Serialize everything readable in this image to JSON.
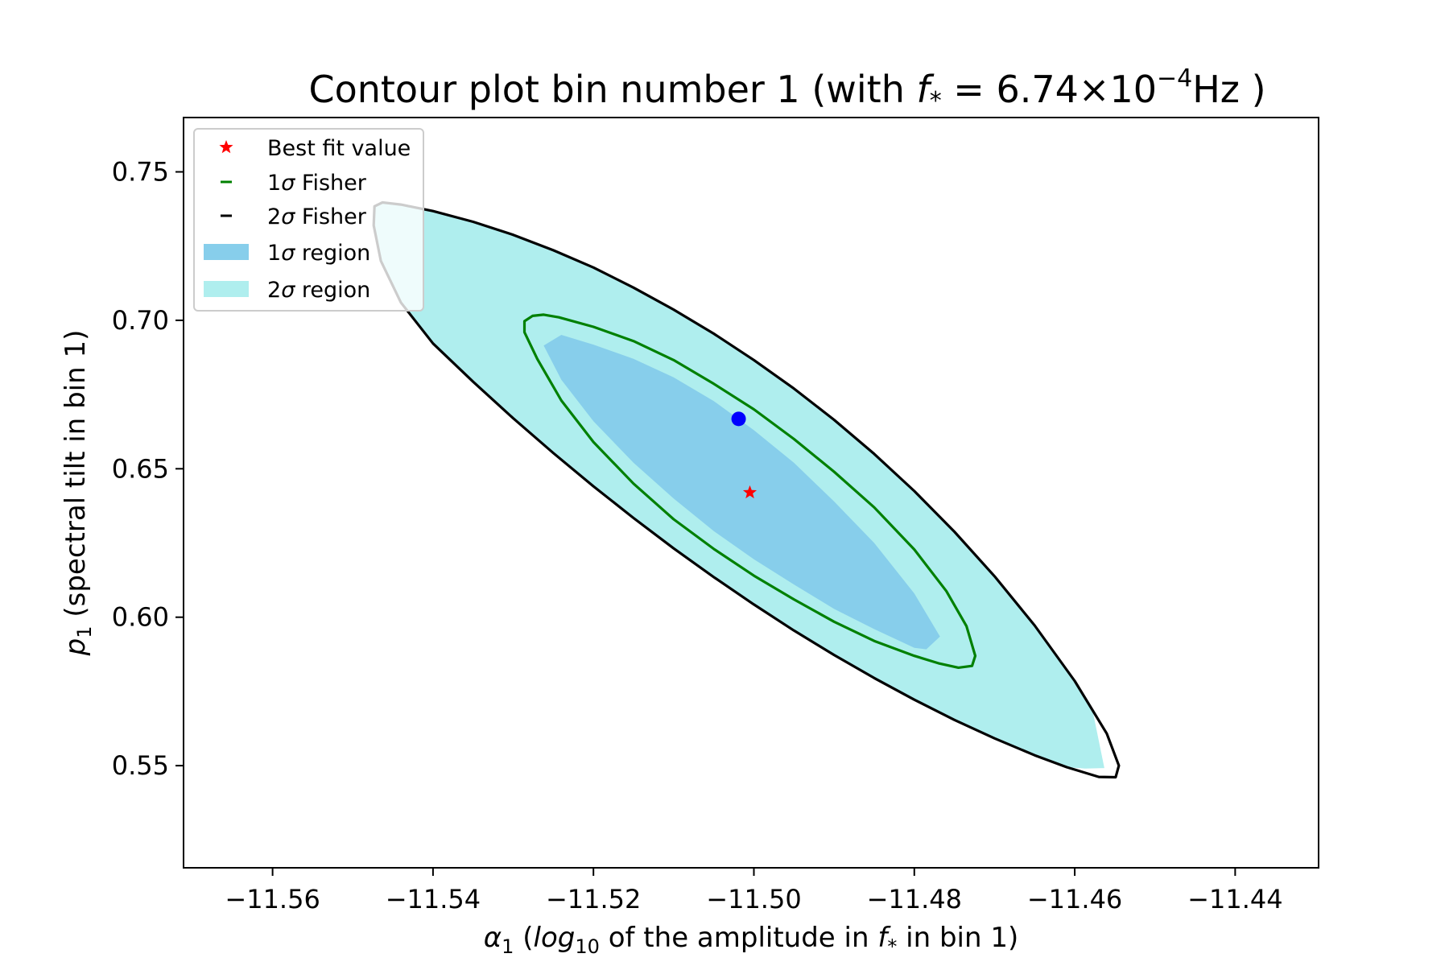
{
  "chart_data": {
    "type": "contour",
    "title": "Contour plot bin number 1 (with f* = 6.74×10⁻⁴Hz )",
    "title_parts": {
      "prefix": "Contour plot bin number 1 (with ",
      "f_symbol": "f",
      "star": "*",
      "equals": " = 6.74×10",
      "exponent": "−4",
      "suffix": "Hz )"
    },
    "xlabel": "α₁ (log₁₀ of the amplitude in f* in bin 1)",
    "xlabel_parts": {
      "alpha": "α",
      "alpha_sub": "1",
      "open": " (",
      "log": "log",
      "log_sub": "10",
      "middle": " of the amplitude in ",
      "f_symbol": "f",
      "star": "*",
      "end": " in bin 1)"
    },
    "ylabel": "p₁ (spectral tilt in bin 1)",
    "ylabel_parts": {
      "p": "p",
      "p_sub": "1",
      "rest": " (spectral tilt in bin 1)"
    },
    "xlim": [
      -11.5711,
      -11.4296
    ],
    "ylim": [
      0.5156,
      0.7683
    ],
    "x_ticks": [
      -11.56,
      -11.54,
      -11.52,
      -11.5,
      -11.48,
      -11.46,
      -11.44
    ],
    "x_tick_labels": [
      "−11.56",
      "−11.54",
      "−11.52",
      "−11.50",
      "−11.48",
      "−11.46",
      "−11.44"
    ],
    "y_ticks": [
      0.55,
      0.6,
      0.65,
      0.7,
      0.75
    ],
    "y_tick_labels": [
      "0.55",
      "0.60",
      "0.65",
      "0.70",
      "0.75"
    ],
    "grid": false,
    "legend_position": "top-left",
    "legend": [
      {
        "label": "Best fit value",
        "label_prefix": "Best fit value",
        "sigma": "",
        "label_suffix": "",
        "marker": "star",
        "color": "#ff0000"
      },
      {
        "label": "1σ Fisher",
        "label_prefix": "1",
        "sigma": "σ",
        "label_suffix": " Fisher",
        "marker": "line",
        "color": "#008000"
      },
      {
        "label": "2σ Fisher",
        "label_prefix": "2",
        "sigma": "σ",
        "label_suffix": " Fisher",
        "marker": "line",
        "color": "#000000"
      },
      {
        "label": "1σ region",
        "label_prefix": "1",
        "sigma": "σ",
        "label_suffix": " region",
        "marker": "patch",
        "color": "#87ceeb"
      },
      {
        "label": "2σ region",
        "label_prefix": "2",
        "sigma": "σ",
        "label_suffix": " region",
        "marker": "patch",
        "color": "#afeeee"
      }
    ],
    "best_fit": {
      "x": -11.5005,
      "y": 0.642,
      "color": "#ff0000"
    },
    "extra_point": {
      "x": -11.5019,
      "y": 0.6668,
      "color": "#0000ff"
    },
    "fisher_1sigma": {
      "color": "#008000",
      "points": [
        [
          -11.5286,
          0.6997
        ],
        [
          -11.5248,
          0.6983
        ],
        [
          -11.52,
          0.6908
        ],
        [
          -11.515,
          0.6795
        ],
        [
          -11.51,
          0.667
        ],
        [
          -11.505,
          0.6545
        ],
        [
          -11.5,
          0.642
        ],
        [
          -11.495,
          0.6295
        ],
        [
          -11.49,
          0.617
        ],
        [
          -11.485,
          0.6045
        ],
        [
          -11.48,
          0.5932
        ],
        [
          -11.4752,
          0.5857
        ],
        [
          -11.4724,
          0.5839
        ],
        [
          -11.4752,
          0.5857
        ]
      ],
      "polygon": [
        [
          -11.5286,
          0.6997
        ],
        [
          -11.5276,
          0.7015
        ],
        [
          -11.5262,
          0.7019
        ],
        [
          -11.5243,
          0.701
        ],
        [
          -11.52,
          0.6978
        ],
        [
          -11.515,
          0.693
        ],
        [
          -11.51,
          0.6866
        ],
        [
          -11.505,
          0.6786
        ],
        [
          -11.5,
          0.67
        ],
        [
          -11.495,
          0.66
        ],
        [
          -11.49,
          0.649
        ],
        [
          -11.485,
          0.637
        ],
        [
          -11.48,
          0.6228
        ],
        [
          -11.476,
          0.6088
        ],
        [
          -11.4735,
          0.597
        ],
        [
          -11.4724,
          0.587
        ],
        [
          -11.4728,
          0.5836
        ],
        [
          -11.4745,
          0.583
        ],
        [
          -11.477,
          0.5845
        ],
        [
          -11.48,
          0.587
        ],
        [
          -11.485,
          0.592
        ],
        [
          -11.49,
          0.5985
        ],
        [
          -11.495,
          0.606
        ],
        [
          -11.5,
          0.614
        ],
        [
          -11.505,
          0.623
        ],
        [
          -11.51,
          0.633
        ],
        [
          -11.515,
          0.645
        ],
        [
          -11.52,
          0.659
        ],
        [
          -11.524,
          0.673
        ],
        [
          -11.527,
          0.687
        ],
        [
          -11.5286,
          0.696
        ]
      ]
    },
    "fisher_2sigma": {
      "color": "#000000",
      "polygon": [
        [
          -11.5473,
          0.7384
        ],
        [
          -11.5463,
          0.7397
        ],
        [
          -11.544,
          0.739
        ],
        [
          -11.54,
          0.7368
        ],
        [
          -11.535,
          0.7332
        ],
        [
          -11.53,
          0.7288
        ],
        [
          -11.525,
          0.7236
        ],
        [
          -11.52,
          0.7178
        ],
        [
          -11.515,
          0.711
        ],
        [
          -11.51,
          0.7036
        ],
        [
          -11.505,
          0.6955
        ],
        [
          -11.5,
          0.6866
        ],
        [
          -11.495,
          0.677
        ],
        [
          -11.49,
          0.6665
        ],
        [
          -11.485,
          0.655
        ],
        [
          -11.48,
          0.6425
        ],
        [
          -11.475,
          0.6288
        ],
        [
          -11.47,
          0.6138
        ],
        [
          -11.465,
          0.5972
        ],
        [
          -11.46,
          0.5785
        ],
        [
          -11.456,
          0.5608
        ],
        [
          -11.4545,
          0.55
        ],
        [
          -11.4549,
          0.5461
        ],
        [
          -11.457,
          0.5462
        ],
        [
          -11.461,
          0.5495
        ],
        [
          -11.465,
          0.5535
        ],
        [
          -11.47,
          0.5592
        ],
        [
          -11.475,
          0.5654
        ],
        [
          -11.48,
          0.5722
        ],
        [
          -11.485,
          0.5795
        ],
        [
          -11.49,
          0.5873
        ],
        [
          -11.495,
          0.5955
        ],
        [
          -11.5,
          0.6043
        ],
        [
          -11.505,
          0.6135
        ],
        [
          -11.51,
          0.6232
        ],
        [
          -11.515,
          0.6334
        ],
        [
          -11.52,
          0.6441
        ],
        [
          -11.525,
          0.6553
        ],
        [
          -11.53,
          0.667
        ],
        [
          -11.535,
          0.6793
        ],
        [
          -11.54,
          0.6922
        ],
        [
          -11.544,
          0.706
        ],
        [
          -11.5465,
          0.72
        ],
        [
          -11.5474,
          0.732
        ]
      ]
    },
    "region_1sigma": {
      "color": "#87ceeb",
      "polygon": [
        [
          -11.5262,
          0.6915
        ],
        [
          -11.524,
          0.6951
        ],
        [
          -11.52,
          0.6918
        ],
        [
          -11.515,
          0.687
        ],
        [
          -11.51,
          0.6808
        ],
        [
          -11.505,
          0.6728
        ],
        [
          -11.5,
          0.663
        ],
        [
          -11.495,
          0.652
        ],
        [
          -11.49,
          0.639
        ],
        [
          -11.485,
          0.625
        ],
        [
          -11.48,
          0.608
        ],
        [
          -11.477,
          0.5944
        ],
        [
          -11.4768,
          0.5935
        ],
        [
          -11.4785,
          0.5892
        ],
        [
          -11.48,
          0.5897
        ],
        [
          -11.485,
          0.596
        ],
        [
          -11.49,
          0.6028
        ],
        [
          -11.495,
          0.611
        ],
        [
          -11.5,
          0.6195
        ],
        [
          -11.505,
          0.629
        ],
        [
          -11.51,
          0.64
        ],
        [
          -11.515,
          0.652
        ],
        [
          -11.52,
          0.666
        ],
        [
          -11.524,
          0.68
        ]
      ]
    },
    "region_2sigma": {
      "color": "#afeeee",
      "polygon": [
        [
          -11.5473,
          0.7384
        ],
        [
          -11.5463,
          0.7397
        ],
        [
          -11.544,
          0.739
        ],
        [
          -11.54,
          0.7368
        ],
        [
          -11.535,
          0.7332
        ],
        [
          -11.53,
          0.7288
        ],
        [
          -11.525,
          0.7236
        ],
        [
          -11.52,
          0.7178
        ],
        [
          -11.515,
          0.711
        ],
        [
          -11.51,
          0.7036
        ],
        [
          -11.505,
          0.6955
        ],
        [
          -11.5,
          0.6866
        ],
        [
          -11.495,
          0.677
        ],
        [
          -11.49,
          0.6665
        ],
        [
          -11.485,
          0.655
        ],
        [
          -11.48,
          0.6425
        ],
        [
          -11.475,
          0.6288
        ],
        [
          -11.47,
          0.6138
        ],
        [
          -11.465,
          0.5972
        ],
        [
          -11.46,
          0.5785
        ],
        [
          -11.4577,
          0.5676
        ],
        [
          -11.4563,
          0.5492
        ],
        [
          -11.4587,
          0.549
        ],
        [
          -11.461,
          0.5495
        ],
        [
          -11.465,
          0.5535
        ],
        [
          -11.47,
          0.5592
        ],
        [
          -11.475,
          0.5654
        ],
        [
          -11.48,
          0.5722
        ],
        [
          -11.485,
          0.5795
        ],
        [
          -11.49,
          0.5873
        ],
        [
          -11.495,
          0.5955
        ],
        [
          -11.5,
          0.6043
        ],
        [
          -11.505,
          0.6135
        ],
        [
          -11.51,
          0.6232
        ],
        [
          -11.515,
          0.6334
        ],
        [
          -11.52,
          0.6441
        ],
        [
          -11.525,
          0.6553
        ],
        [
          -11.53,
          0.667
        ],
        [
          -11.535,
          0.6793
        ],
        [
          -11.54,
          0.6922
        ],
        [
          -11.544,
          0.706
        ],
        [
          -11.5465,
          0.72
        ],
        [
          -11.5474,
          0.732
        ]
      ]
    }
  }
}
